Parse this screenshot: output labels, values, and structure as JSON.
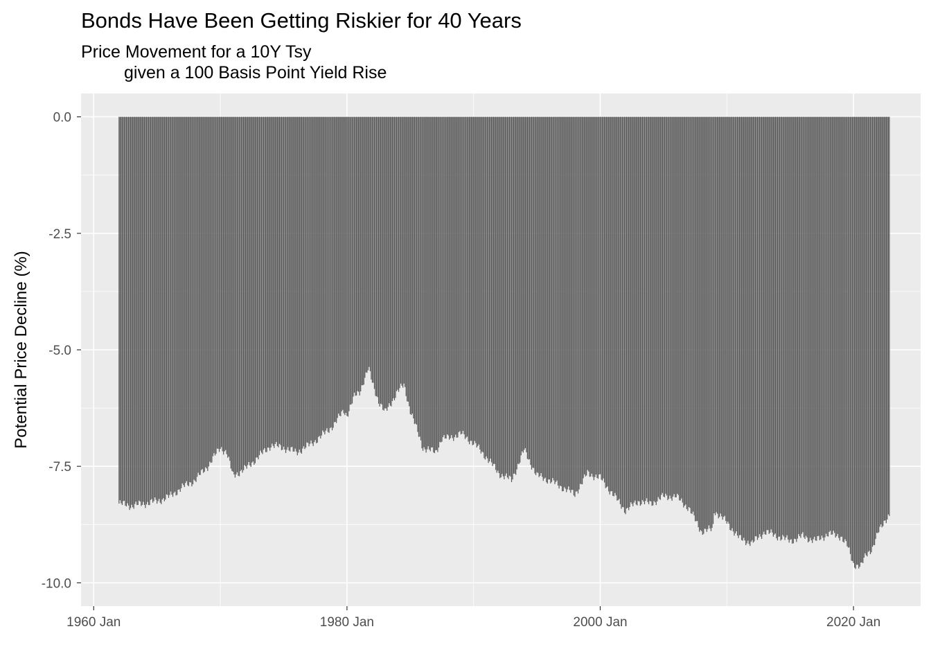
{
  "chart_data": {
    "type": "bar",
    "title": "Bonds Have Been Getting Riskier for 40 Years",
    "subtitle_line1": "Price Movement for a 10Y Tsy",
    "subtitle_line2": "given a 100 Basis Point Yield Rise",
    "xlabel": "",
    "ylabel": "Potential Price Decline (%)",
    "xlim": [
      1959.0,
      2025.3
    ],
    "ylim": [
      -10.5,
      0.5
    ],
    "yticks": [
      0,
      -2.5,
      -5,
      -7.5,
      -10
    ],
    "ytick_labels": [
      "0.0",
      "-2.5",
      "-5.0",
      "-7.5",
      "-10.0"
    ],
    "xticks": [
      1960,
      1980,
      2000,
      2020
    ],
    "xtick_labels": [
      "1960 Jan",
      "1980 Jan",
      "2000 Jan",
      "2020 Jan"
    ],
    "grid": true,
    "bar_color": "#595959",
    "panel_color": "#ebebeb",
    "grid_color": "#ffffff",
    "frequency": "monthly",
    "series": [
      {
        "x": [
          1962.0,
          1963.0,
          1964.0,
          1965.0,
          1966.0,
          1967.0,
          1968.0,
          1969.0,
          1970.0,
          1970.5,
          1971.0,
          1972.0,
          1973.0,
          1974.0,
          1975.0,
          1976.0,
          1977.0,
          1978.0,
          1979.0,
          1979.75,
          1980.0,
          1980.6,
          1981.0,
          1981.7,
          1982.0,
          1982.5,
          1983.0,
          1984.0,
          1984.5,
          1985.0,
          1986.0,
          1987.0,
          1987.5,
          1988.0,
          1989.0,
          1990.0,
          1991.0,
          1992.0,
          1993.0,
          1994.0,
          1995.0,
          1996.0,
          1997.0,
          1998.0,
          1999.0,
          2000.0,
          2001.0,
          2002.0,
          2003.0,
          2004.0,
          2005.0,
          2006.0,
          2007.0,
          2008.0,
          2008.9,
          2009.0,
          2010.0,
          2011.0,
          2012.0,
          2013.0,
          2014.0,
          2015.0,
          2016.0,
          2017.0,
          2018.0,
          2019.0,
          2019.5,
          2020.0,
          2020.6,
          2021.0,
          2021.5,
          2022.0,
          2022.5,
          2022.8
        ],
        "y": [
          -8.3,
          -8.35,
          -8.3,
          -8.25,
          -8.15,
          -7.95,
          -7.8,
          -7.5,
          -7.1,
          -7.2,
          -7.7,
          -7.55,
          -7.3,
          -7.05,
          -7.1,
          -7.2,
          -7.05,
          -6.85,
          -6.6,
          -6.3,
          -6.4,
          -6.0,
          -5.9,
          -5.4,
          -5.7,
          -6.1,
          -6.35,
          -5.9,
          -5.75,
          -6.3,
          -7.1,
          -7.2,
          -6.9,
          -6.9,
          -6.8,
          -7.0,
          -7.3,
          -7.65,
          -7.8,
          -7.15,
          -7.7,
          -7.8,
          -7.95,
          -8.1,
          -7.65,
          -7.75,
          -8.1,
          -8.45,
          -8.25,
          -8.3,
          -8.15,
          -8.15,
          -8.4,
          -8.9,
          -8.85,
          -8.45,
          -8.7,
          -9.05,
          -9.15,
          -8.9,
          -9.0,
          -9.1,
          -9.0,
          -9.1,
          -8.95,
          -9.0,
          -9.2,
          -9.6,
          -9.65,
          -9.4,
          -9.25,
          -8.9,
          -8.65,
          -8.55
        ]
      }
    ]
  }
}
